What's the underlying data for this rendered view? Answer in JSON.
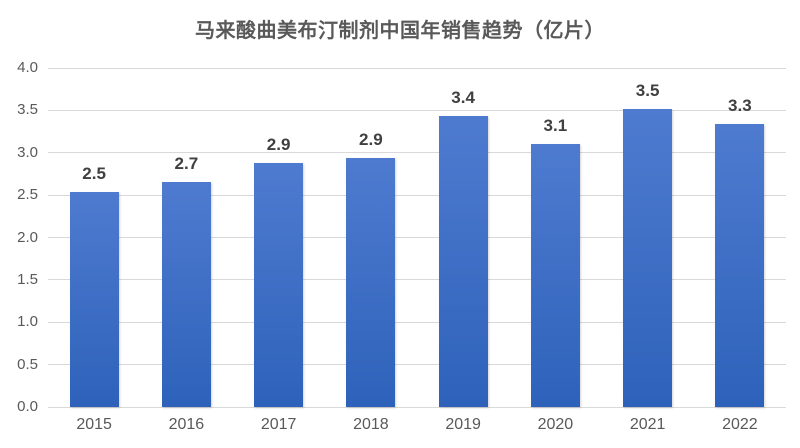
{
  "chart_data": {
    "type": "bar",
    "title": "马来酸曲美布汀制剂中国年销售趋势（亿片）",
    "categories": [
      "2015",
      "2016",
      "2017",
      "2018",
      "2019",
      "2020",
      "2021",
      "2022"
    ],
    "values": [
      2.5,
      2.7,
      2.9,
      2.9,
      3.4,
      3.1,
      3.5,
      3.3
    ],
    "values_precise": [
      2.54,
      2.66,
      2.88,
      2.94,
      3.43,
      3.1,
      3.52,
      3.34
    ],
    "data_labels": [
      "2.5",
      "2.7",
      "2.9",
      "2.9",
      "3.4",
      "3.1",
      "3.5",
      "3.3"
    ],
    "xlabel": "",
    "ylabel": "",
    "ylim": [
      0,
      4
    ],
    "y_tick_labels": [
      "0.0",
      "0.5",
      "1.0",
      "1.5",
      "2.0",
      "2.5",
      "3.0",
      "3.5",
      "4.0"
    ],
    "grid": true,
    "legend": false,
    "colors": {
      "bar_gradient_top": "#4e7bd0",
      "bar_gradient_bottom": "#2e62ba",
      "gridline": "#d9d9d9",
      "axis_text": "#595959",
      "value_label_text": "#404040",
      "title_text": "#595959",
      "background": "#ffffff"
    }
  }
}
